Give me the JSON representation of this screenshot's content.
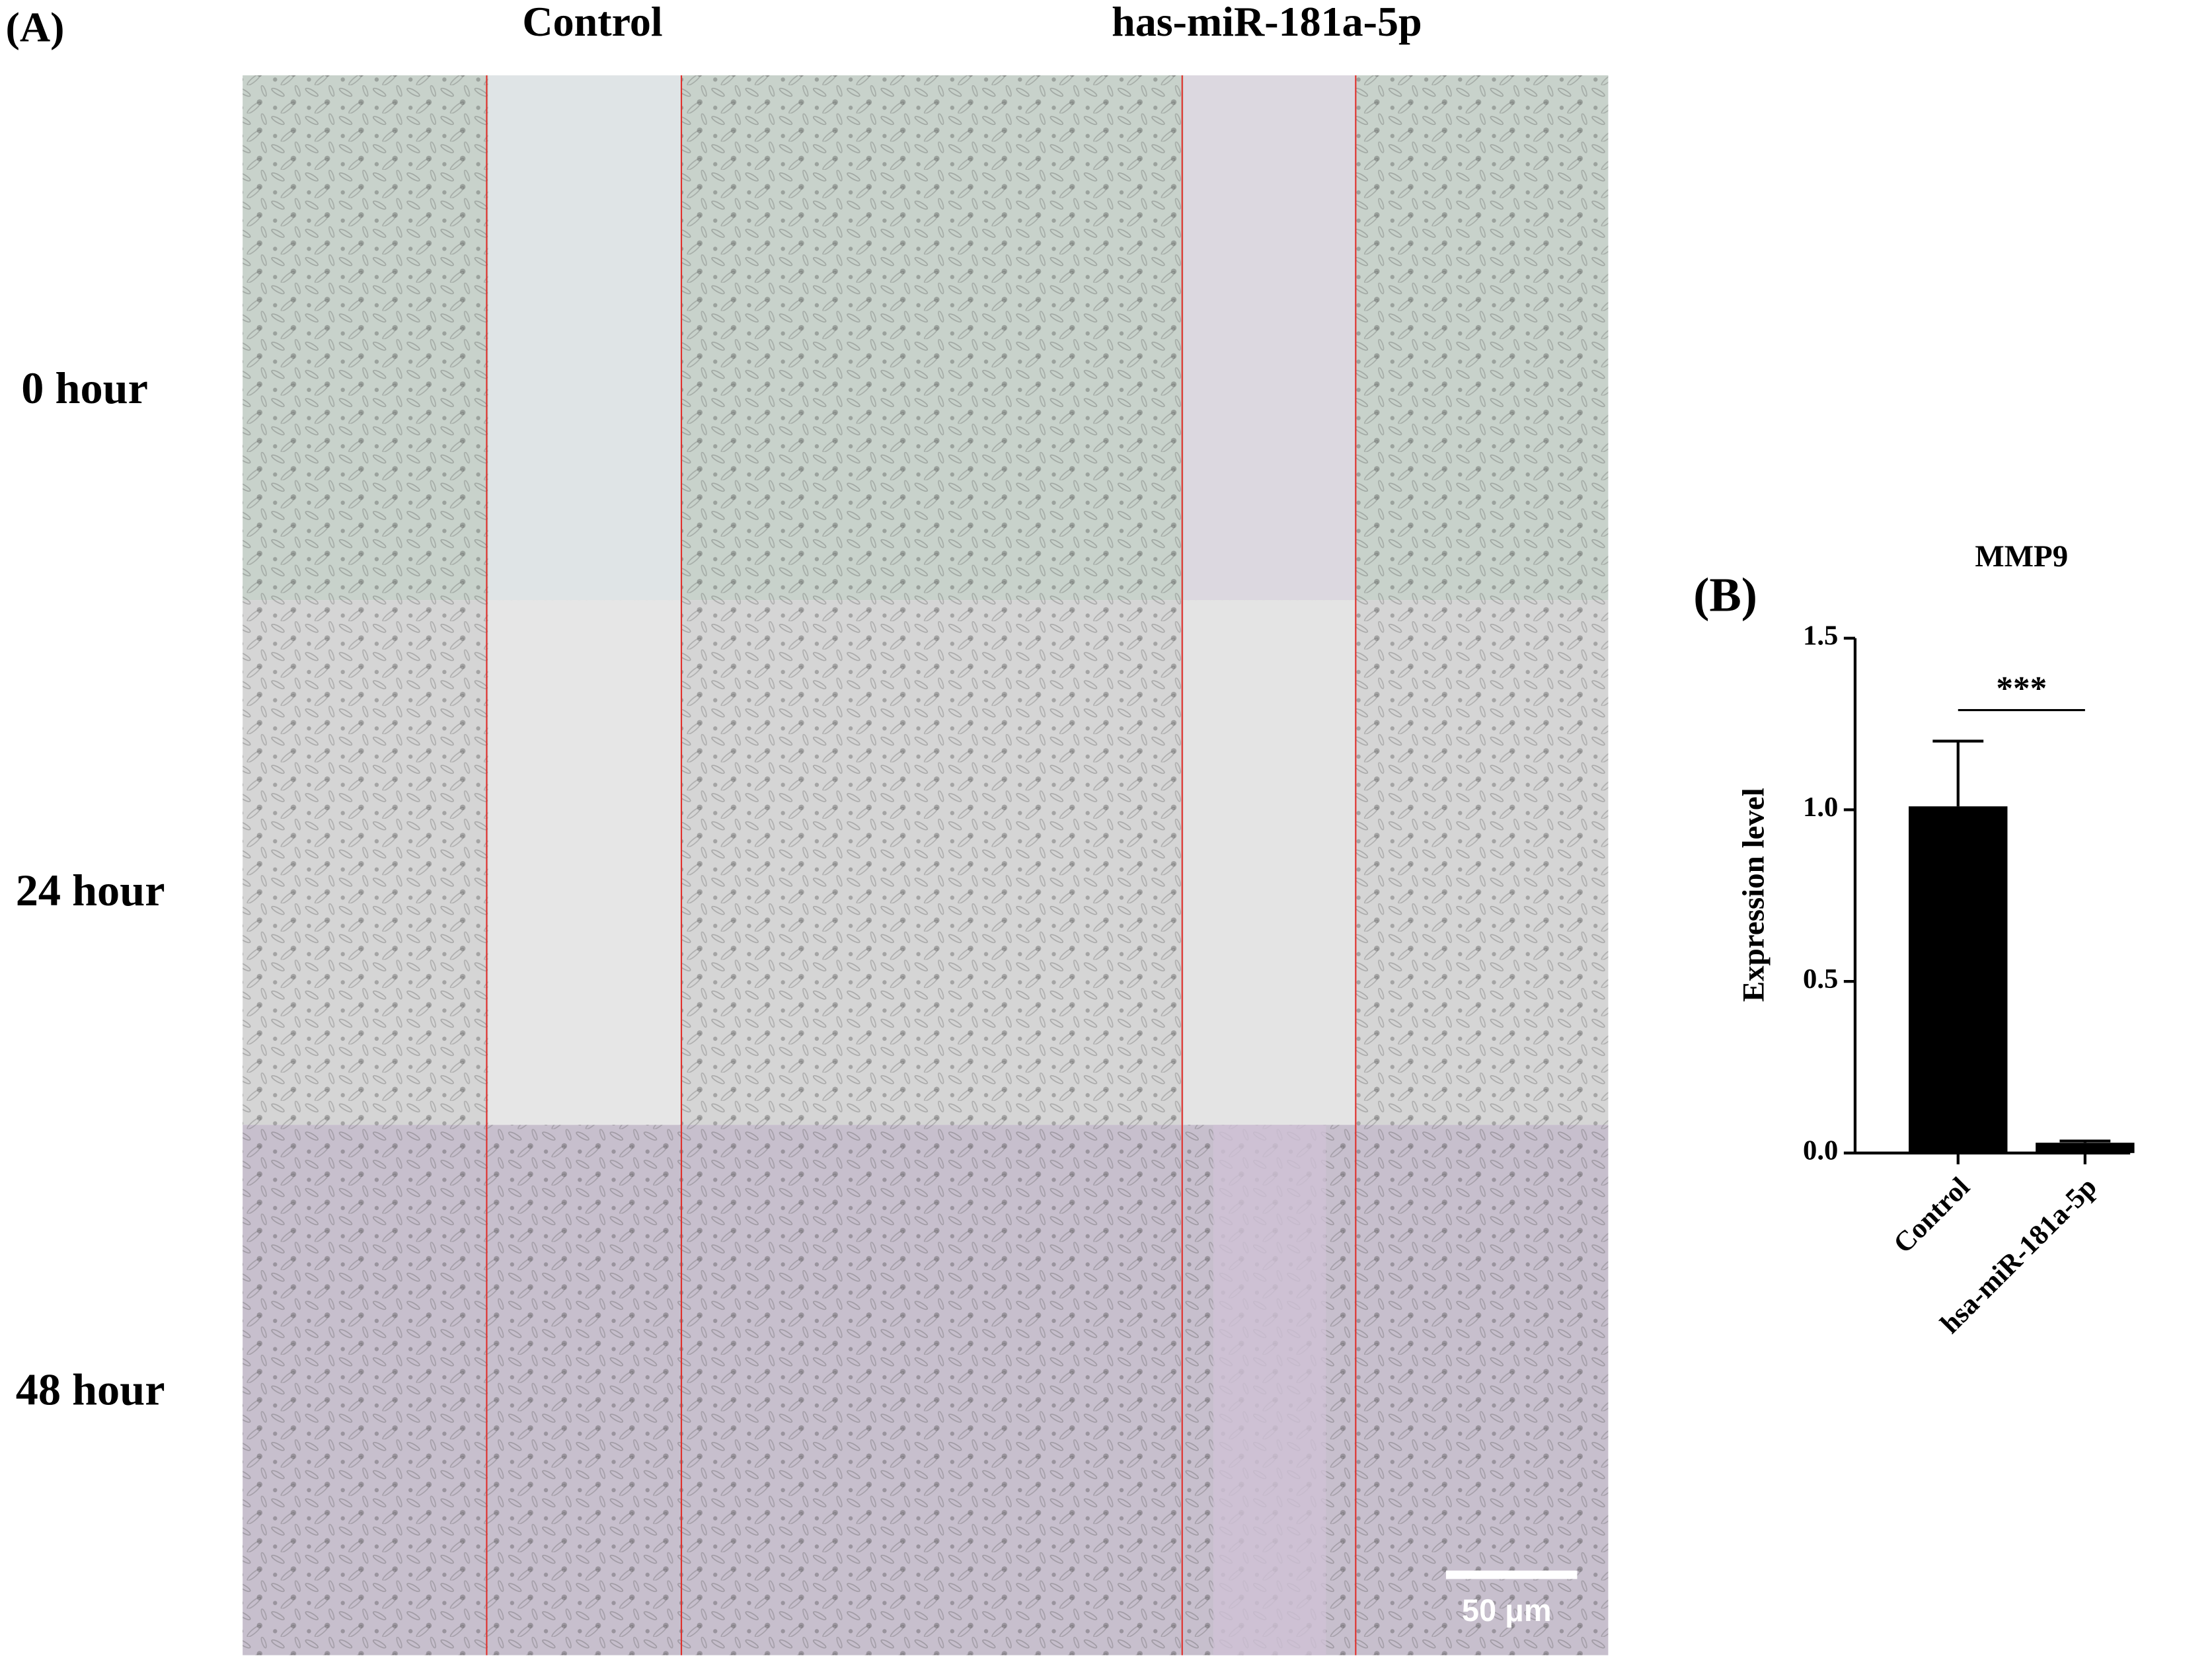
{
  "panel_a": {
    "label": "(A)",
    "columns": [
      "Control",
      "has-miR-181a-5p"
    ],
    "rows": [
      "0 hour",
      "24 hour",
      "48 hour"
    ],
    "scale_bar": "50 μm"
  },
  "chart_data": {
    "type": "bar",
    "panel_label": "(B)",
    "title": "MMP9",
    "ylabel": "Expression level",
    "categories": [
      "Control",
      "hsa-miR-181a-5p"
    ],
    "values": [
      1.01,
      0.03
    ],
    "errors": [
      0.19,
      0.005
    ],
    "color": "#000000",
    "ylim": [
      0,
      1.5
    ],
    "yticks": [
      {
        "value": 0,
        "label": "0.0"
      },
      {
        "value": 0.5,
        "label": "0.5"
      },
      {
        "value": 1,
        "label": "1.0"
      },
      {
        "value": 1.5,
        "label": "1.5"
      }
    ],
    "annotation": "***"
  }
}
